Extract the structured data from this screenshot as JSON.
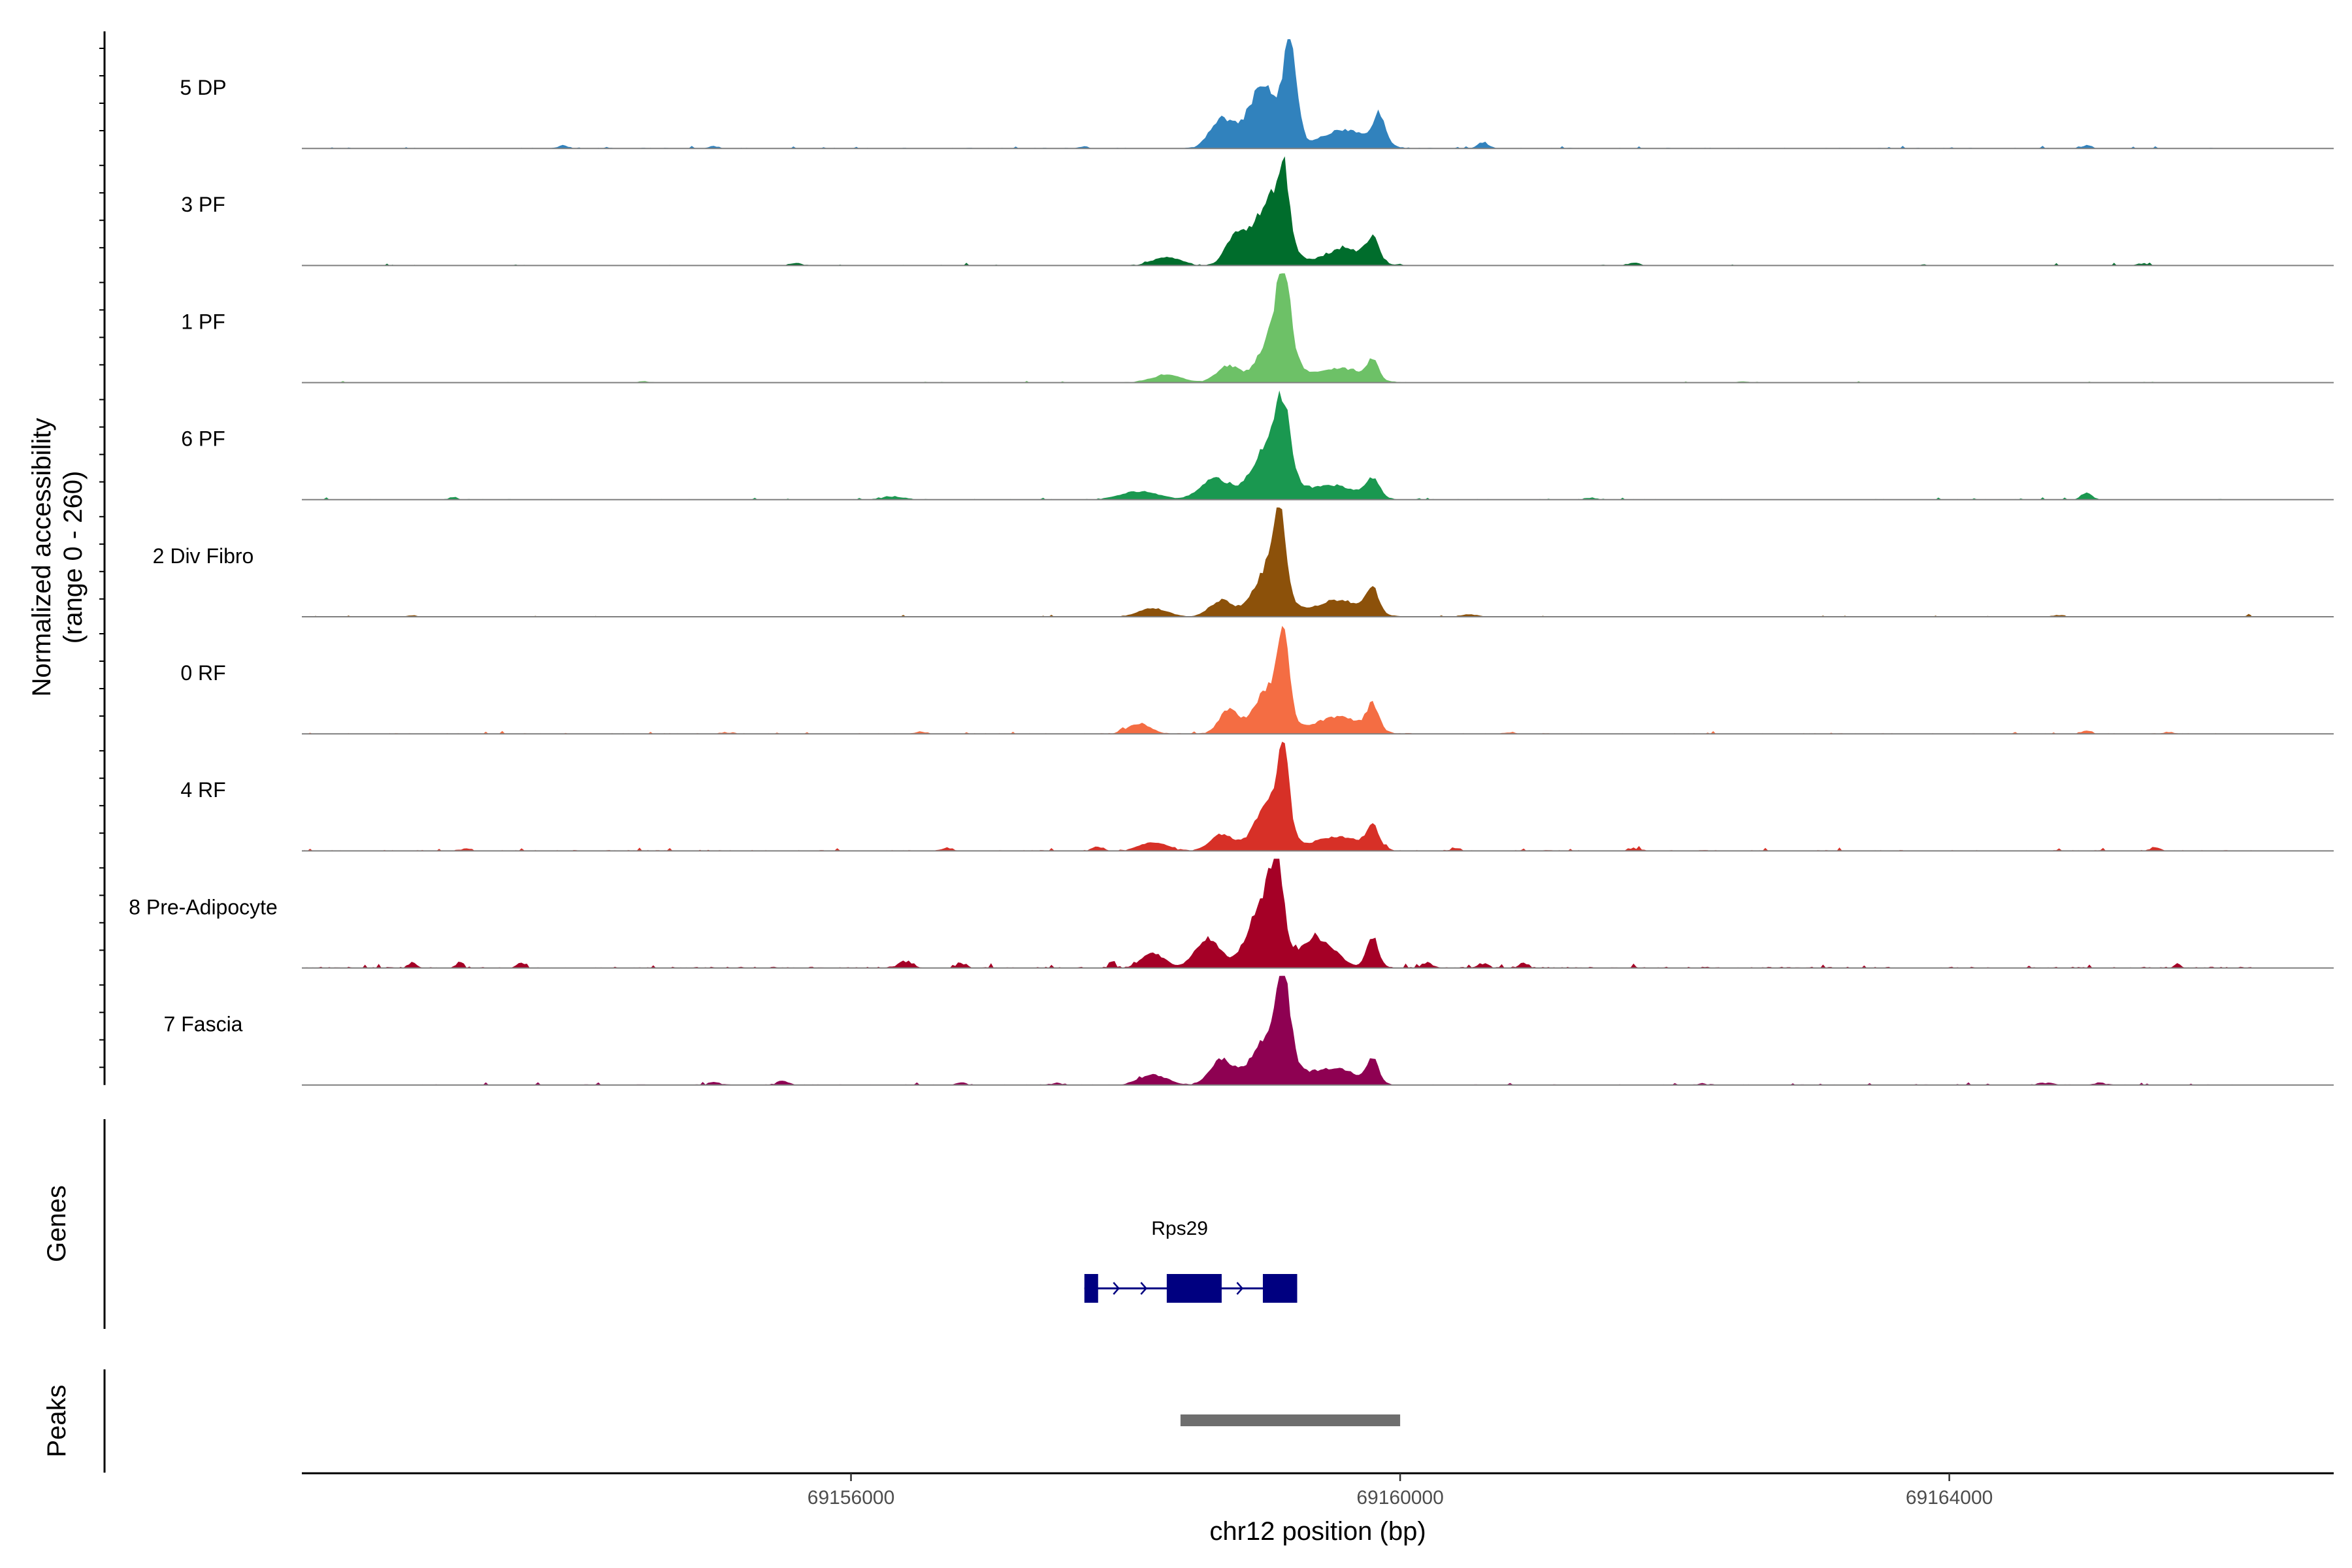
{
  "chart_data": {
    "type": "area",
    "title": "",
    "chromosome": "chr12",
    "xlabel": "chr12 position (bp)",
    "ylabel_line1": "Normalized accessibility",
    "ylabel_line2": "(range 0 - 260)",
    "xlim": [
      69152000,
      69166800
    ],
    "ylim": [
      0,
      260
    ],
    "x_ticks": [
      69156000,
      69160000,
      69164000
    ],
    "x_tick_labels": [
      "69156000",
      "69160000",
      "69164000"
    ],
    "series": [
      {
        "name": "5 DP",
        "color": "#3182BD",
        "peaks": [
          [
            69159200,
            230,
            70
          ],
          [
            69159000,
            150,
            150
          ],
          [
            69158700,
            70,
            120
          ],
          [
            69159850,
            70,
            60
          ],
          [
            69159600,
            45,
            250
          ]
        ],
        "blips": [
          [
            69153900,
            8,
            50
          ],
          [
            69160600,
            14,
            60
          ],
          [
            69157700,
            6,
            40
          ],
          [
            69165000,
            8,
            50
          ],
          [
            69155000,
            5,
            60
          ]
        ],
        "noise": 3,
        "seed": 11
      },
      {
        "name": "3 PF",
        "color": "#006D2C",
        "peaks": [
          [
            69159150,
            150,
            60
          ],
          [
            69159050,
            150,
            160
          ],
          [
            69158800,
            70,
            100
          ],
          [
            69159800,
            55,
            60
          ],
          [
            69159600,
            40,
            220
          ],
          [
            69158300,
            20,
            150
          ]
        ],
        "blips": [
          [
            69155600,
            6,
            60
          ],
          [
            69161700,
            6,
            60
          ],
          [
            69165400,
            5,
            60
          ]
        ],
        "noise": 3,
        "seed": 23
      },
      {
        "name": "1 PF",
        "color": "#6DC167",
        "peaks": [
          [
            69159150,
            180,
            60
          ],
          [
            69159100,
            140,
            150
          ],
          [
            69158750,
            40,
            120
          ],
          [
            69159800,
            45,
            60
          ],
          [
            69159550,
            35,
            240
          ],
          [
            69158300,
            18,
            160
          ]
        ],
        "blips": [
          [
            69154500,
            3,
            60
          ],
          [
            69162500,
            3,
            60
          ]
        ],
        "noise": 2,
        "seed": 37
      },
      {
        "name": "6 PF",
        "color": "#1A9850",
        "peaks": [
          [
            69159150,
            150,
            70
          ],
          [
            69159050,
            130,
            170
          ],
          [
            69158650,
            50,
            150
          ],
          [
            69159800,
            45,
            70
          ],
          [
            69159500,
            35,
            260
          ],
          [
            69158100,
            20,
            200
          ]
        ],
        "blips": [
          [
            69153100,
            6,
            50
          ],
          [
            69156300,
            8,
            120
          ],
          [
            69165000,
            16,
            60
          ],
          [
            69161400,
            5,
            60
          ]
        ],
        "noise": 3,
        "seed": 41
      },
      {
        "name": "2 Div Fibro",
        "color": "#8C510A",
        "peaks": [
          [
            69159120,
            190,
            60
          ],
          [
            69159050,
            120,
            150
          ],
          [
            69158700,
            40,
            120
          ],
          [
            69159800,
            60,
            60
          ],
          [
            69159550,
            40,
            250
          ],
          [
            69158200,
            20,
            150
          ]
        ],
        "blips": [
          [
            69152800,
            4,
            50
          ],
          [
            69160500,
            6,
            80
          ],
          [
            69164800,
            4,
            60
          ],
          [
            69166200,
            4,
            60
          ]
        ],
        "noise": 2,
        "seed": 53
      },
      {
        "name": "0 RF",
        "color": "#F46D43",
        "peaks": [
          [
            69159150,
            170,
            60
          ],
          [
            69159050,
            110,
            150
          ],
          [
            69158750,
            55,
            100
          ],
          [
            69159800,
            60,
            60
          ],
          [
            69159550,
            40,
            250
          ],
          [
            69158100,
            25,
            120
          ]
        ],
        "blips": [
          [
            69156500,
            6,
            60
          ],
          [
            69165000,
            7,
            60
          ],
          [
            69165600,
            5,
            60
          ],
          [
            69155100,
            4,
            60
          ],
          [
            69160800,
            4,
            60
          ]
        ],
        "noise": 3,
        "seed": 67
      },
      {
        "name": "4 RF",
        "color": "#D73027",
        "peaks": [
          [
            69159150,
            180,
            60
          ],
          [
            69159050,
            110,
            150
          ],
          [
            69158700,
            40,
            120
          ],
          [
            69159800,
            55,
            60
          ],
          [
            69159550,
            35,
            250
          ],
          [
            69158200,
            20,
            150
          ]
        ],
        "blips": [
          [
            69153200,
            7,
            50
          ],
          [
            69156700,
            7,
            60
          ],
          [
            69161700,
            7,
            60
          ],
          [
            69165500,
            9,
            50
          ],
          [
            69157800,
            10,
            60
          ],
          [
            69160400,
            8,
            50
          ]
        ],
        "noise": 4,
        "seed": 79
      },
      {
        "name": "8 Pre-Adipocyte",
        "color": "#A50026",
        "peaks": [
          [
            69159100,
            180,
            70
          ],
          [
            69159000,
            150,
            150
          ],
          [
            69158600,
            70,
            130
          ],
          [
            69159800,
            75,
            60
          ],
          [
            69159400,
            70,
            180
          ],
          [
            69158200,
            35,
            120
          ]
        ],
        "blips": [
          [
            69152800,
            14,
            40
          ],
          [
            69153150,
            16,
            40
          ],
          [
            69153600,
            12,
            40
          ],
          [
            69156400,
            16,
            80
          ],
          [
            69156800,
            12,
            60
          ],
          [
            69160200,
            12,
            60
          ],
          [
            69160600,
            10,
            60
          ],
          [
            69160900,
            12,
            60
          ],
          [
            69157900,
            14,
            40
          ]
        ],
        "noise": 6,
        "seed": 83
      },
      {
        "name": "7 Fascia",
        "color": "#8E0152",
        "peaks": [
          [
            69159150,
            180,
            70
          ],
          [
            69159050,
            120,
            170
          ],
          [
            69158700,
            60,
            120
          ],
          [
            69159800,
            55,
            60
          ],
          [
            69159500,
            40,
            260
          ],
          [
            69158200,
            25,
            150
          ]
        ],
        "blips": [
          [
            69155500,
            10,
            60
          ],
          [
            69155000,
            7,
            60
          ],
          [
            69156800,
            6,
            60
          ],
          [
            69157500,
            6,
            60
          ],
          [
            69164700,
            5,
            80
          ],
          [
            69165100,
            6,
            60
          ],
          [
            69162200,
            4,
            60
          ]
        ],
        "noise": 3,
        "seed": 97
      }
    ],
    "genes_track_label": "Genes",
    "genes": [
      {
        "name": "Rps29",
        "start": 69157700,
        "end": 69159250,
        "color": "#000080",
        "exons": [
          [
            69157700,
            69157800
          ],
          [
            69158300,
            69158700
          ],
          [
            69159000,
            69159250
          ]
        ],
        "arrows": [
          69157950,
          69158150,
          69158850
        ]
      }
    ],
    "peaks_track_label": "Peaks",
    "peaks": [
      {
        "start": 69158400,
        "end": 69160000,
        "color": "#6E6E6E"
      }
    ]
  }
}
